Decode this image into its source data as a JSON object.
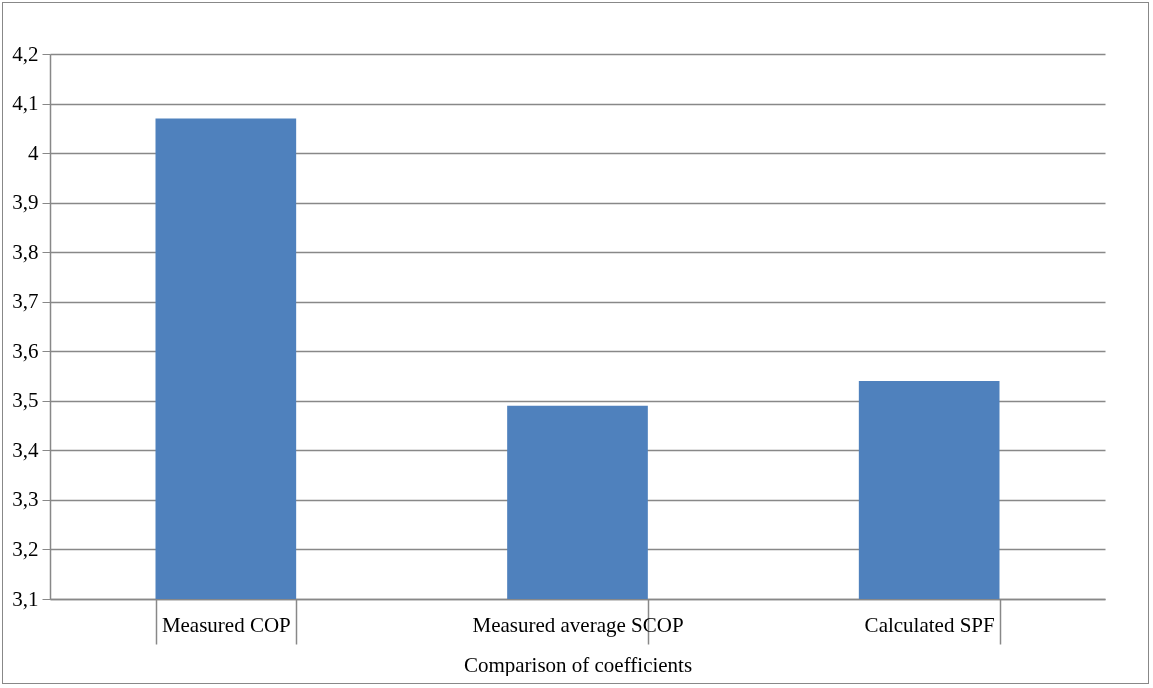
{
  "chart_data": {
    "type": "bar",
    "xlabel": "Comparison of coefficients",
    "categories": [
      "Measured COP",
      "Measured average SCOP",
      "Calculated SPF"
    ],
    "values": [
      4.07,
      3.49,
      3.54
    ],
    "color": "#4f81bd",
    "ylim": [
      3.1,
      4.2
    ],
    "yticks": [
      {
        "value": 3.1,
        "label": "3,1"
      },
      {
        "value": 3.2,
        "label": "3,2"
      },
      {
        "value": 3.3,
        "label": "3,3"
      },
      {
        "value": 3.4,
        "label": "3,4"
      },
      {
        "value": 3.5,
        "label": "3,5"
      },
      {
        "value": 3.6,
        "label": "3,6"
      },
      {
        "value": 3.7,
        "label": "3,7"
      },
      {
        "value": 3.8,
        "label": "3,8"
      },
      {
        "value": 3.9,
        "label": "3,9"
      },
      4,
      {
        "value": 4.1,
        "label": "4,1"
      },
      {
        "value": 4.2,
        "label": "4,2"
      }
    ],
    "grid": "y"
  }
}
